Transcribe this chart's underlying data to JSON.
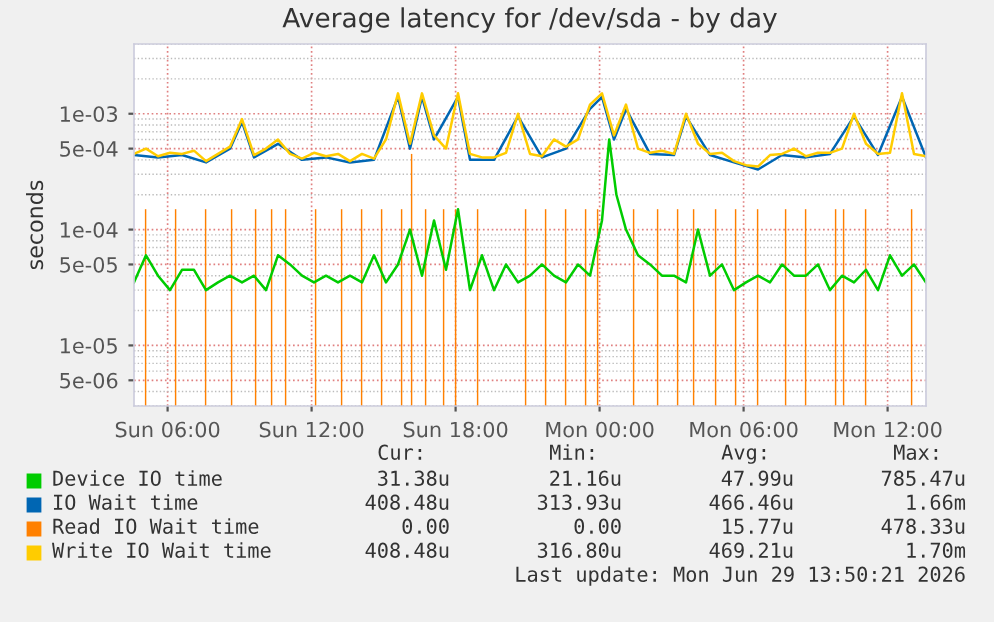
{
  "chart_data": {
    "type": "line",
    "title": "Average latency for /dev/sda - by day",
    "ylabel": "seconds",
    "log": "y",
    "grid": true,
    "legend": "bottom",
    "xlim": [
      "2026-06-28T04:36",
      "2026-06-29T13:36"
    ],
    "xticks": [
      {
        "value": "2026-06-28T06:00",
        "label": "Sun 06:00"
      },
      {
        "value": "2026-06-28T12:00",
        "label": "Sun 12:00"
      },
      {
        "value": "2026-06-28T18:00",
        "label": "Sun 18:00"
      },
      {
        "value": "2026-06-29T00:00",
        "label": "Mon 00:00"
      },
      {
        "value": "2026-06-29T06:00",
        "label": "Mon 06:00"
      },
      {
        "value": "2026-06-29T12:00",
        "label": "Mon 12:00"
      }
    ],
    "ylim": [
      3e-06,
      0.004
    ],
    "yticks": [
      {
        "value": 5e-06,
        "label": "5e-06"
      },
      {
        "value": 1e-05,
        "label": "1e-05"
      },
      {
        "value": 5e-05,
        "label": "5e-05"
      },
      {
        "value": 0.0001,
        "label": "1e-04"
      },
      {
        "value": 0.0005,
        "label": "5e-04"
      },
      {
        "value": 0.001,
        "label": "1e-03"
      }
    ],
    "series": [
      {
        "name": "Device IO time",
        "color": "#00cc00",
        "x": [
          "2026-06-28T04:36",
          "2026-06-28T05:06",
          "2026-06-28T05:36",
          "2026-06-28T06:06",
          "2026-06-28T06:36",
          "2026-06-28T07:06",
          "2026-06-28T07:36",
          "2026-06-28T08:06",
          "2026-06-28T08:36",
          "2026-06-28T09:06",
          "2026-06-28T09:36",
          "2026-06-28T10:06",
          "2026-06-28T10:36",
          "2026-06-28T11:06",
          "2026-06-28T11:36",
          "2026-06-28T12:06",
          "2026-06-28T12:36",
          "2026-06-28T13:06",
          "2026-06-28T13:36",
          "2026-06-28T14:06",
          "2026-06-28T14:36",
          "2026-06-28T15:06",
          "2026-06-28T15:36",
          "2026-06-28T16:06",
          "2026-06-28T16:36",
          "2026-06-28T17:06",
          "2026-06-28T17:36",
          "2026-06-28T18:06",
          "2026-06-28T18:36",
          "2026-06-28T19:06",
          "2026-06-28T19:36",
          "2026-06-28T20:06",
          "2026-06-28T20:36",
          "2026-06-28T21:06",
          "2026-06-28T21:36",
          "2026-06-28T22:06",
          "2026-06-28T22:36",
          "2026-06-28T23:06",
          "2026-06-28T23:36",
          "2026-06-29T00:06",
          "2026-06-29T00:24",
          "2026-06-29T00:42",
          "2026-06-29T01:06",
          "2026-06-29T01:36",
          "2026-06-29T02:06",
          "2026-06-29T02:36",
          "2026-06-29T03:06",
          "2026-06-29T03:36",
          "2026-06-29T04:06",
          "2026-06-29T04:36",
          "2026-06-29T05:06",
          "2026-06-29T05:36",
          "2026-06-29T06:06",
          "2026-06-29T06:36",
          "2026-06-29T07:06",
          "2026-06-29T07:36",
          "2026-06-29T08:06",
          "2026-06-29T08:36",
          "2026-06-29T09:06",
          "2026-06-29T09:36",
          "2026-06-29T10:06",
          "2026-06-29T10:36",
          "2026-06-29T11:06",
          "2026-06-29T11:36",
          "2026-06-29T12:06",
          "2026-06-29T12:36",
          "2026-06-29T13:06",
          "2026-06-29T13:36"
        ],
        "values": [
          3.5e-05,
          6e-05,
          4e-05,
          3e-05,
          4.5e-05,
          4.5e-05,
          3e-05,
          3.5e-05,
          4e-05,
          3.5e-05,
          4e-05,
          3e-05,
          6e-05,
          5e-05,
          4e-05,
          3.5e-05,
          4e-05,
          3.5e-05,
          4e-05,
          3.5e-05,
          6e-05,
          3.5e-05,
          5e-05,
          0.0001,
          4e-05,
          0.00012,
          4.5e-05,
          0.00015,
          3e-05,
          6e-05,
          3e-05,
          5e-05,
          3.5e-05,
          4e-05,
          5e-05,
          4e-05,
          3.5e-05,
          5e-05,
          4e-05,
          0.00012,
          0.0006,
          0.0002,
          0.0001,
          6e-05,
          5e-05,
          4e-05,
          4e-05,
          3.5e-05,
          0.0001,
          4e-05,
          5e-05,
          3e-05,
          3.5e-05,
          4e-05,
          3.5e-05,
          5e-05,
          4e-05,
          4e-05,
          5e-05,
          3e-05,
          4e-05,
          3.5e-05,
          4.5e-05,
          3e-05,
          6e-05,
          4e-05,
          5e-05,
          3.5e-05
        ]
      },
      {
        "name": "IO Wait time",
        "color": "#0066b3",
        "x": [
          "2026-06-28T04:36",
          "2026-06-28T05:36",
          "2026-06-28T06:36",
          "2026-06-28T07:36",
          "2026-06-28T08:36",
          "2026-06-28T09:06",
          "2026-06-28T09:36",
          "2026-06-28T10:36",
          "2026-06-28T11:36",
          "2026-06-28T12:36",
          "2026-06-28T13:36",
          "2026-06-28T14:36",
          "2026-06-28T15:36",
          "2026-06-28T16:06",
          "2026-06-28T16:36",
          "2026-06-28T17:06",
          "2026-06-28T18:06",
          "2026-06-28T18:36",
          "2026-06-28T19:36",
          "2026-06-28T20:36",
          "2026-06-28T21:36",
          "2026-06-28T22:36",
          "2026-06-28T23:36",
          "2026-06-29T00:06",
          "2026-06-29T00:36",
          "2026-06-29T01:06",
          "2026-06-29T02:06",
          "2026-06-29T03:06",
          "2026-06-29T03:36",
          "2026-06-29T04:36",
          "2026-06-29T05:36",
          "2026-06-29T06:36",
          "2026-06-29T07:36",
          "2026-06-29T08:36",
          "2026-06-29T09:36",
          "2026-06-29T10:36",
          "2026-06-29T11:36",
          "2026-06-29T12:36",
          "2026-06-29T13:36"
        ],
        "values": [
          0.00044,
          0.00042,
          0.00044,
          0.00038,
          0.0005,
          0.00085,
          0.00042,
          0.00055,
          0.0004,
          0.00042,
          0.00038,
          0.0004,
          0.0014,
          0.0005,
          0.0014,
          0.0006,
          0.0014,
          0.0004,
          0.0004,
          0.00095,
          0.00042,
          0.0005,
          0.0011,
          0.0014,
          0.0006,
          0.0011,
          0.00045,
          0.00044,
          0.00095,
          0.00044,
          0.00038,
          0.00033,
          0.00044,
          0.00042,
          0.00045,
          0.00095,
          0.00044,
          0.0014,
          0.00042
        ]
      },
      {
        "name": "Read IO Wait time",
        "color": "#ff8000",
        "type": "bar",
        "x": [
          "2026-06-28T05:05",
          "2026-06-28T06:20",
          "2026-06-28T07:35",
          "2026-06-28T08:40",
          "2026-06-28T09:40",
          "2026-06-28T10:20",
          "2026-06-28T10:55",
          "2026-06-28T12:10",
          "2026-06-28T13:15",
          "2026-06-28T14:05",
          "2026-06-28T14:55",
          "2026-06-28T15:45",
          "2026-06-28T16:10",
          "2026-06-28T16:45",
          "2026-06-28T17:30",
          "2026-06-28T18:00",
          "2026-06-28T18:55",
          "2026-06-28T20:55",
          "2026-06-28T21:45",
          "2026-06-28T22:35",
          "2026-06-28T23:25",
          "2026-06-28T23:55",
          "2026-06-29T01:25",
          "2026-06-29T02:25",
          "2026-06-29T03:15",
          "2026-06-29T03:55",
          "2026-06-29T04:50",
          "2026-06-29T05:40",
          "2026-06-29T06:35",
          "2026-06-29T07:45",
          "2026-06-29T08:35",
          "2026-06-29T09:50",
          "2026-06-29T10:10",
          "2026-06-29T11:05",
          "2026-06-29T13:00"
        ],
        "values": [
          0.00015,
          0.00015,
          0.00015,
          0.00015,
          0.00015,
          0.00015,
          0.00015,
          0.00015,
          0.00015,
          0.00015,
          0.00015,
          0.00015,
          0.00045,
          0.00015,
          0.00015,
          0.00015,
          0.00015,
          0.00015,
          0.00015,
          0.00015,
          0.00015,
          0.00015,
          0.00015,
          0.00015,
          0.00015,
          0.00015,
          0.00015,
          0.00015,
          0.00015,
          0.00015,
          0.00015,
          0.00015,
          0.00015,
          0.00015,
          0.00015
        ]
      },
      {
        "name": "Write IO Wait time",
        "color": "#ffcc00",
        "x": [
          "2026-06-28T04:36",
          "2026-06-28T05:06",
          "2026-06-28T05:36",
          "2026-06-28T06:06",
          "2026-06-28T06:36",
          "2026-06-28T07:06",
          "2026-06-28T07:36",
          "2026-06-28T08:06",
          "2026-06-28T08:36",
          "2026-06-28T09:06",
          "2026-06-28T09:36",
          "2026-06-28T10:06",
          "2026-06-28T10:36",
          "2026-06-28T11:06",
          "2026-06-28T11:36",
          "2026-06-28T12:06",
          "2026-06-28T12:36",
          "2026-06-28T13:06",
          "2026-06-28T13:36",
          "2026-06-28T14:06",
          "2026-06-28T14:36",
          "2026-06-28T15:06",
          "2026-06-28T15:36",
          "2026-06-28T16:06",
          "2026-06-28T16:36",
          "2026-06-28T17:06",
          "2026-06-28T17:36",
          "2026-06-28T18:06",
          "2026-06-28T18:36",
          "2026-06-28T19:06",
          "2026-06-28T19:36",
          "2026-06-28T20:06",
          "2026-06-28T20:36",
          "2026-06-28T21:06",
          "2026-06-28T21:36",
          "2026-06-28T22:06",
          "2026-06-28T22:36",
          "2026-06-28T23:06",
          "2026-06-28T23:36",
          "2026-06-29T00:06",
          "2026-06-29T00:36",
          "2026-06-29T01:06",
          "2026-06-29T01:36",
          "2026-06-29T02:06",
          "2026-06-29T02:36",
          "2026-06-29T03:06",
          "2026-06-29T03:36",
          "2026-06-29T04:06",
          "2026-06-29T04:36",
          "2026-06-29T05:06",
          "2026-06-29T05:36",
          "2026-06-29T06:06",
          "2026-06-29T06:36",
          "2026-06-29T07:06",
          "2026-06-29T07:36",
          "2026-06-29T08:06",
          "2026-06-29T08:36",
          "2026-06-29T09:06",
          "2026-06-29T09:36",
          "2026-06-29T10:06",
          "2026-06-29T10:36",
          "2026-06-29T11:06",
          "2026-06-29T11:36",
          "2026-06-29T12:06",
          "2026-06-29T12:36",
          "2026-06-29T13:06",
          "2026-06-29T13:36"
        ],
        "values": [
          0.00045,
          0.0005,
          0.00043,
          0.00046,
          0.00045,
          0.00048,
          0.00039,
          0.00045,
          0.00052,
          0.0009,
          0.00044,
          0.0005,
          0.0006,
          0.00045,
          0.00041,
          0.00046,
          0.00043,
          0.00045,
          0.00039,
          0.00045,
          0.00041,
          0.0006,
          0.0015,
          0.00055,
          0.0015,
          0.00065,
          0.0005,
          0.0015,
          0.00045,
          0.00042,
          0.00042,
          0.00046,
          0.001,
          0.00045,
          0.00043,
          0.0006,
          0.00052,
          0.0006,
          0.0012,
          0.0015,
          0.00065,
          0.0012,
          0.0005,
          0.00046,
          0.00048,
          0.00045,
          0.001,
          0.00055,
          0.00045,
          0.00046,
          0.00039,
          0.00036,
          0.00035,
          0.00044,
          0.00045,
          0.0005,
          0.00043,
          0.00046,
          0.00046,
          0.0005,
          0.001,
          0.00055,
          0.00045,
          0.00046,
          0.0015,
          0.00045,
          0.00043
        ]
      }
    ],
    "annotations": [
      "Cur:",
      "Min:",
      "Avg:",
      "Max:",
      "31.38u",
      "21.16u",
      "47.99u",
      "785.47u",
      "408.48u",
      "313.93u",
      "466.46u",
      "1.66m",
      "0.00",
      "0.00",
      "15.77u",
      "478.33u",
      "408.48u",
      "316.80u",
      "469.21u",
      "1.70m",
      "Last update: Mon Jun 29 13:50:21 2026"
    ]
  }
}
